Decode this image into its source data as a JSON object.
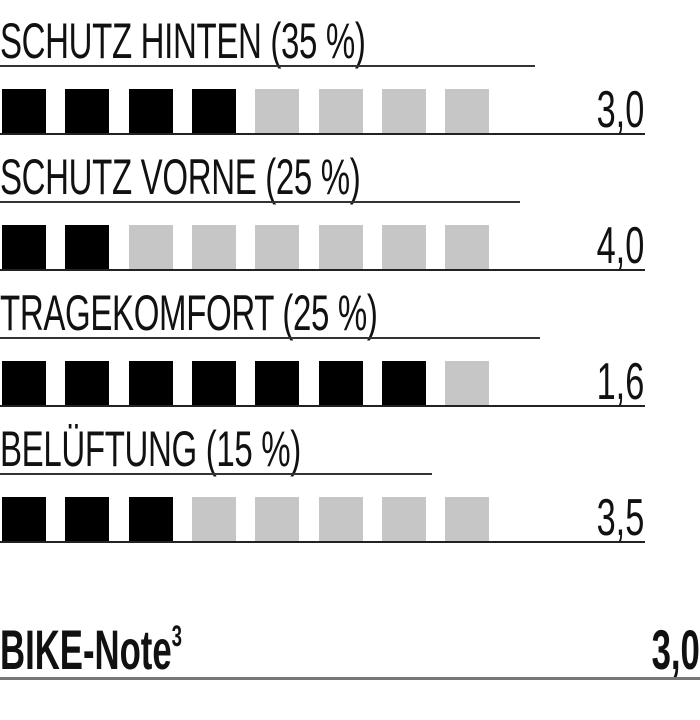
{
  "scale_max": 8,
  "colors": {
    "filled": "#000000",
    "empty": "#c6c6c6"
  },
  "criteria": [
    {
      "label": "SCHUTZ HINTEN (35 %)",
      "filled": 4,
      "value": "3,0"
    },
    {
      "label": "SCHUTZ VORNE (25 %)",
      "filled": 2,
      "value": "4,0"
    },
    {
      "label": "TRAGEKOMFORT (25 %)",
      "filled": 7,
      "value": "1,6"
    },
    {
      "label": "BELÜFTUNG (15 %)",
      "filled": 3,
      "value": "3,5"
    }
  ],
  "total": {
    "label": "BIKE-Note",
    "footnote": "3",
    "value": "3,0"
  }
}
